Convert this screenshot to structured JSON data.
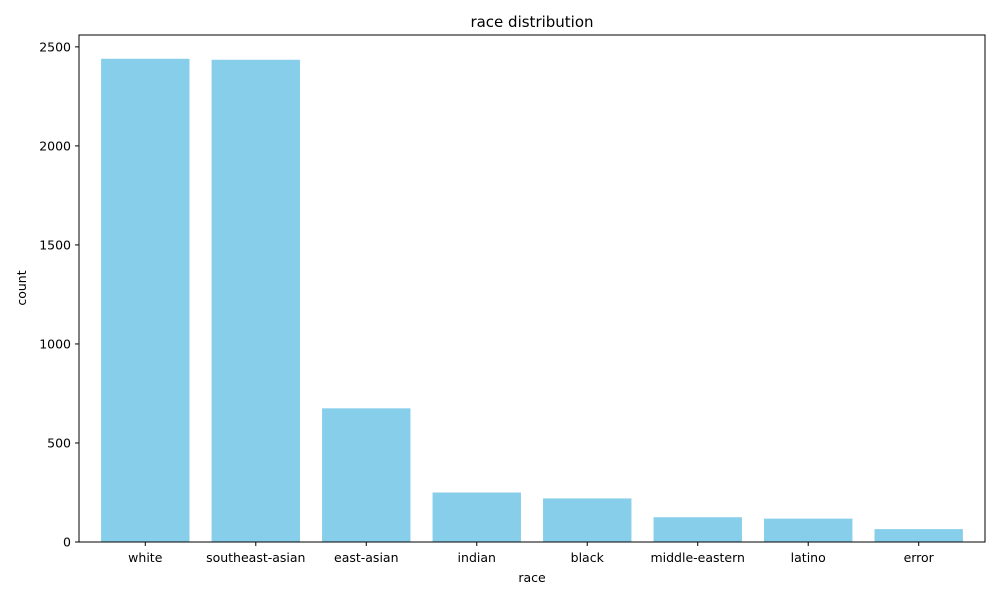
{
  "chart_data": {
    "type": "bar",
    "title": "race distribution",
    "xlabel": "race",
    "ylabel": "count",
    "categories": [
      "white",
      "southeast-asian",
      "east-asian",
      "indian",
      "black",
      "middle-eastern",
      "latino",
      "error"
    ],
    "values": [
      2440,
      2435,
      675,
      250,
      220,
      125,
      118,
      65
    ],
    "ylim": [
      0,
      2560
    ],
    "yticks": [
      0,
      500,
      1000,
      1500,
      2000,
      2500
    ],
    "bar_color": "#87CEEB",
    "grid": false,
    "legend": "none"
  }
}
